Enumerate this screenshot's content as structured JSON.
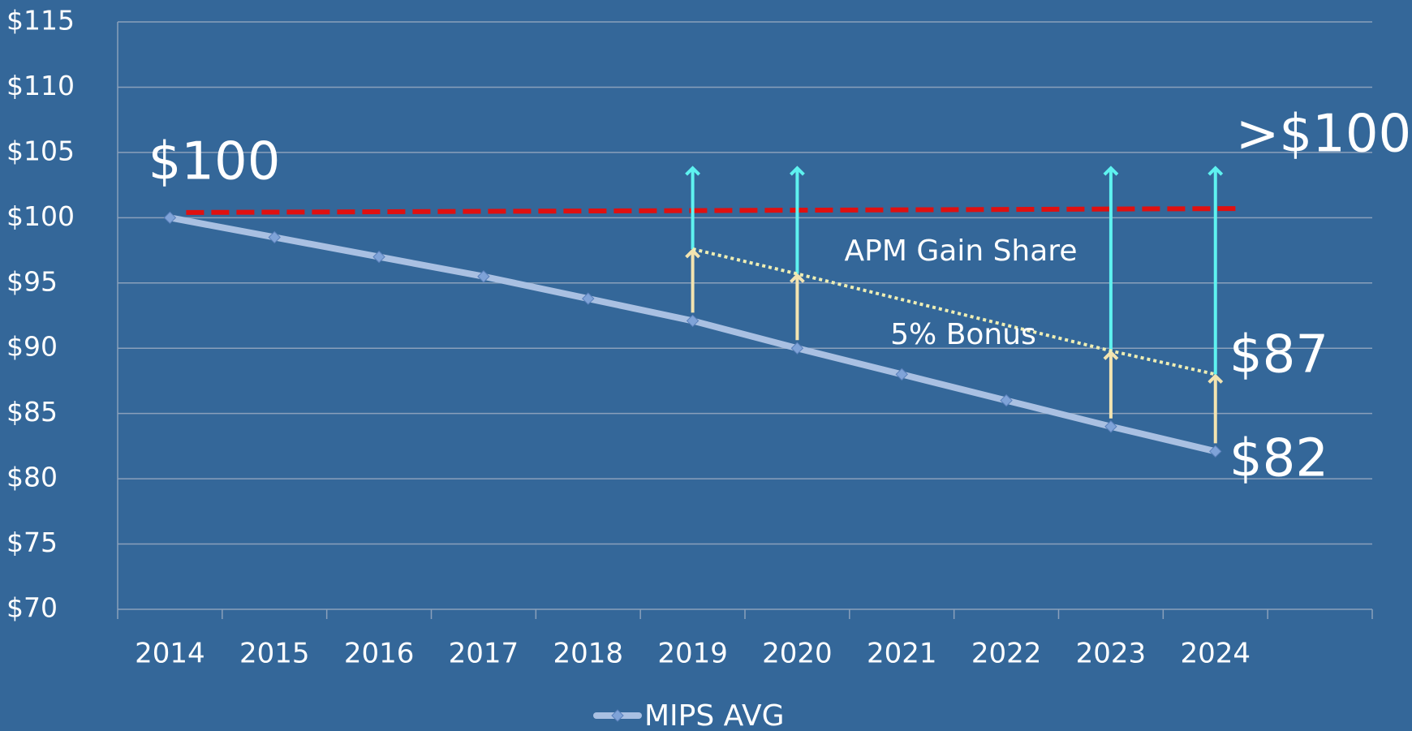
{
  "chart_data": {
    "type": "line",
    "categories": [
      "2014",
      "2015",
      "2016",
      "2017",
      "2018",
      "2019",
      "2020",
      "2021",
      "2022",
      "2023",
      "2024",
      null
    ],
    "series": [
      {
        "name": "MIPS AVG",
        "color": "#a9c0e2",
        "marker_color": "#7fa3d8",
        "values": [
          100,
          98.5,
          97,
          95.5,
          93.8,
          92.1,
          90,
          88,
          86,
          84,
          82.1,
          null
        ]
      }
    ],
    "target_line": {
      "start": 100.4,
      "end": 100.7,
      "color": "#e01010"
    },
    "bonus": {
      "categories": [
        "2019",
        "2020",
        "2023",
        "2024"
      ],
      "values": [
        97.6,
        95.7,
        89.8,
        88
      ],
      "color": "#eeeeb4",
      "arrow_color": "#f3e4b0"
    },
    "gain_share_top": 103.8,
    "gain_share_color": "#5ef2f0",
    "annotations": [
      "$100",
      ">$100",
      "$87",
      "$82",
      "APM Gain Share",
      "5% Bonus"
    ],
    "ylim": [
      70,
      115
    ],
    "yticks": [
      {
        "value": 70,
        "label": "$70"
      },
      {
        "value": 75,
        "label": "$75"
      },
      {
        "value": 80,
        "label": "$80"
      },
      {
        "value": 85,
        "label": "$85"
      },
      {
        "value": 90,
        "label": "$90"
      },
      {
        "value": 95,
        "label": "$95"
      },
      {
        "value": 100,
        "label": "$100"
      },
      {
        "value": 105,
        "label": "$105"
      },
      {
        "value": 110,
        "label": "$110"
      },
      {
        "value": 115,
        "label": "$115"
      }
    ],
    "grid": true,
    "legend": "bottom"
  }
}
